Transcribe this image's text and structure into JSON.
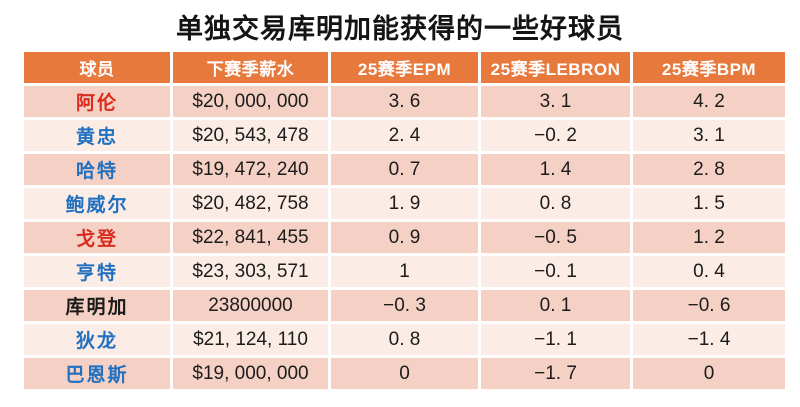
{
  "title": "单独交易库明加能获得的一些好球员",
  "colors": {
    "header_bg": "#E8793C",
    "band_dark": "#F5D1C5",
    "band_light": "#FBECE6",
    "player_red": "#D92B1E",
    "player_blue": "#2170C0",
    "player_black": "#1A1A1A"
  },
  "table": {
    "headers": [
      "球员",
      "下赛季薪水",
      "25赛季EPM",
      "25赛季LEBRON",
      "25赛季BPM"
    ],
    "rows": [
      {
        "player": "阿伦",
        "player_color": "red",
        "salary": "$20, 000, 000",
        "epm": "3. 6",
        "lebron": "3. 1",
        "bpm": "4. 2"
      },
      {
        "player": "黄忠",
        "player_color": "blue",
        "salary": "$20, 543, 478",
        "epm": "2. 4",
        "lebron": "−0. 2",
        "bpm": "3. 1"
      },
      {
        "player": "哈特",
        "player_color": "blue",
        "salary": "$19, 472, 240",
        "epm": "0. 7",
        "lebron": "1. 4",
        "bpm": "2. 8"
      },
      {
        "player": "鲍威尔",
        "player_color": "blue",
        "salary": "$20, 482, 758",
        "epm": "1. 9",
        "lebron": "0. 8",
        "bpm": "1. 5"
      },
      {
        "player": "戈登",
        "player_color": "red",
        "salary": "$22, 841, 455",
        "epm": "0. 9",
        "lebron": "−0. 5",
        "bpm": "1. 2"
      },
      {
        "player": "亨特",
        "player_color": "blue",
        "salary": "$23, 303, 571",
        "epm": "1",
        "lebron": "−0. 1",
        "bpm": "0. 4"
      },
      {
        "player": "库明加",
        "player_color": "black",
        "salary": "23800000",
        "epm": "−0. 3",
        "lebron": "0. 1",
        "bpm": "−0. 6"
      },
      {
        "player": "狄龙",
        "player_color": "blue",
        "salary": "$21, 124, 110",
        "epm": "0. 8",
        "lebron": "−1. 1",
        "bpm": "−1. 4"
      },
      {
        "player": "巴恩斯",
        "player_color": "blue",
        "salary": "$19, 000, 000",
        "epm": "0",
        "lebron": "−1. 7",
        "bpm": "0"
      }
    ]
  },
  "chart_data": {
    "type": "table",
    "title": "单独交易库明加能获得的一些好球员",
    "columns": [
      "球员",
      "下赛季薪水",
      "25赛季EPM",
      "25赛季LEBRON",
      "25赛季BPM"
    ],
    "rows": [
      [
        "阿伦",
        "$20,000,000",
        3.6,
        3.1,
        4.2
      ],
      [
        "黄忠",
        "$20,543,478",
        2.4,
        -0.2,
        3.1
      ],
      [
        "哈特",
        "$19,472,240",
        0.7,
        1.4,
        2.8
      ],
      [
        "鲍威尔",
        "$20,482,758",
        1.9,
        0.8,
        1.5
      ],
      [
        "戈登",
        "$22,841,455",
        0.9,
        -0.5,
        1.2
      ],
      [
        "亨特",
        "$23,303,571",
        1,
        -0.1,
        0.4
      ],
      [
        "库明加",
        "23800000",
        -0.3,
        0.1,
        -0.6
      ],
      [
        "狄龙",
        "$21,124,110",
        0.8,
        -1.1,
        -1.4
      ],
      [
        "巴恩斯",
        "$19,000,000",
        0,
        -1.7,
        0
      ]
    ],
    "layout": {
      "header_fill": "#E8793C",
      "banding": [
        "#F5D1C5",
        "#FBECE6"
      ],
      "grid": "white 3px separators"
    }
  }
}
